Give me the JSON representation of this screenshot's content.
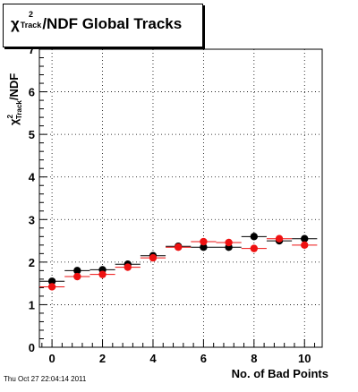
{
  "chart_data": {
    "type": "scatter",
    "title": {
      "chi": "χ",
      "sup": "2",
      "sub": "Track",
      "rest": "/NDF  Global Tracks"
    },
    "ylabel": {
      "chi": "χ",
      "sup": "2",
      "sub": "Track",
      "rest": "/NDF"
    },
    "xlabel": "No. of Bad Points",
    "xlim": [
      -0.5,
      10.7
    ],
    "ylim": [
      0,
      7
    ],
    "x_ticks": [
      0,
      2,
      4,
      6,
      8,
      10
    ],
    "y_ticks": [
      0,
      1,
      2,
      3,
      4,
      5,
      6,
      7
    ],
    "grid": true,
    "series": [
      {
        "color": "#000000",
        "points": [
          {
            "x": 0,
            "y": 1.55,
            "xerr": 0.5
          },
          {
            "x": 1,
            "y": 1.8,
            "xerr": 0.5
          },
          {
            "x": 2,
            "y": 1.82,
            "xerr": 0.5
          },
          {
            "x": 3,
            "y": 1.95,
            "xerr": 0.5
          },
          {
            "x": 4,
            "y": 2.15,
            "xerr": 0.5
          },
          {
            "x": 5,
            "y": 2.37,
            "xerr": 0.5
          },
          {
            "x": 6,
            "y": 2.35,
            "xerr": 0.5
          },
          {
            "x": 7,
            "y": 2.35,
            "xerr": 0.5
          },
          {
            "x": 8,
            "y": 2.6,
            "xerr": 0.5
          },
          {
            "x": 9,
            "y": 2.5,
            "xerr": 0.5
          },
          {
            "x": 10,
            "y": 2.55,
            "xerr": 0.5
          }
        ]
      },
      {
        "color": "#ee1111",
        "points": [
          {
            "x": 0,
            "y": 1.42,
            "xerr": 0.5
          },
          {
            "x": 1,
            "y": 1.66,
            "xerr": 0.5
          },
          {
            "x": 2,
            "y": 1.71,
            "xerr": 0.5
          },
          {
            "x": 3,
            "y": 1.88,
            "xerr": 0.5
          },
          {
            "x": 4,
            "y": 2.1,
            "xerr": 0.5
          },
          {
            "x": 5,
            "y": 2.35,
            "xerr": 0.5
          },
          {
            "x": 6,
            "y": 2.48,
            "xerr": 0.5
          },
          {
            "x": 7,
            "y": 2.46,
            "xerr": 0.5
          },
          {
            "x": 8,
            "y": 2.32,
            "xerr": 0.5
          },
          {
            "x": 9,
            "y": 2.55,
            "xerr": 0.5
          },
          {
            "x": 10,
            "y": 2.4,
            "xerr": 0.5
          }
        ]
      }
    ]
  },
  "footer": "Thu Oct 27 22:04:14 2011"
}
